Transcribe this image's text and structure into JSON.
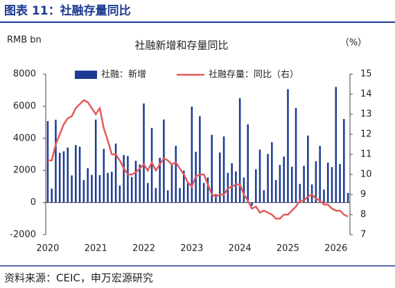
{
  "chart_data": {
    "type": "bar_line",
    "title": "图表 11：社融存量同比",
    "subtitle": "社融新增和存量同比",
    "y_label": "RMB bn",
    "y2_label": "（%）",
    "source": "资料来源：CEIC，申万宏源研究",
    "categories": [
      "2020",
      null,
      null,
      null,
      null,
      null,
      null,
      null,
      null,
      null,
      null,
      null,
      "2021",
      null,
      null,
      null,
      null,
      null,
      null,
      null,
      null,
      null,
      null,
      null,
      "2022",
      null,
      null,
      null,
      null,
      null,
      null,
      null,
      null,
      null,
      null,
      null,
      "2023",
      null,
      null,
      null,
      null,
      null,
      null,
      null,
      null,
      null,
      null,
      null,
      "2024",
      null,
      null,
      null,
      null,
      null,
      null,
      null,
      null,
      null,
      null,
      null,
      "2025",
      null,
      null,
      null,
      null,
      null,
      null,
      null,
      null,
      null,
      null,
      null,
      "2026",
      null,
      null,
      null
    ],
    "ylim": [
      -2000,
      8000
    ],
    "yticks": [
      -2000,
      0,
      2000,
      4000,
      6000,
      8000
    ],
    "y2lim": [
      7,
      15
    ],
    "y2ticks": [
      7,
      8,
      9,
      10,
      11,
      12,
      13,
      14,
      15
    ],
    "series": [
      {
        "name": "社融：新增",
        "color": "#1c3c94",
        "kind": "bar",
        "values": [
          5070,
          870,
          5160,
          3100,
          3190,
          3430,
          1690,
          3580,
          3480,
          1400,
          2140,
          1720,
          5170,
          1710,
          3340,
          1850,
          1920,
          3670,
          1060,
          2960,
          2900,
          1590,
          2600,
          2370,
          6170,
          1220,
          4650,
          910,
          2790,
          5170,
          760,
          2430,
          3530,
          910,
          1990,
          1310,
          5980,
          3160,
          5380,
          1220,
          1560,
          4220,
          530,
          3120,
          4120,
          1850,
          2450,
          1940,
          6500,
          1560,
          4870,
          -200,
          2070,
          3300,
          770,
          3030,
          3760,
          1400,
          2340,
          2860,
          7060,
          2230,
          5890,
          1160,
          2290,
          4170,
          1130,
          2570,
          3530,
          810,
          2490,
          2210,
          7200,
          2400,
          5200,
          600
        ]
      },
      {
        "name": "社融存量：同比（右）",
        "color": "#e35a5a",
        "kind": "line",
        "axis": "y2",
        "values": [
          10.7,
          10.7,
          11.5,
          12.0,
          12.5,
          12.8,
          12.9,
          13.3,
          13.5,
          13.7,
          13.6,
          13.3,
          13.0,
          13.3,
          12.3,
          11.7,
          11.0,
          11.0,
          10.7,
          10.3,
          10.0,
          10.0,
          10.1,
          10.3,
          10.5,
          10.2,
          10.6,
          10.2,
          10.5,
          10.8,
          10.7,
          10.5,
          10.6,
          10.3,
          10.0,
          9.6,
          9.4,
          9.9,
          10.0,
          10.0,
          9.5,
          9.0,
          8.9,
          9.0,
          9.0,
          9.3,
          9.4,
          9.5,
          9.5,
          9.0,
          8.7,
          8.3,
          8.4,
          8.1,
          8.2,
          8.1,
          8.0,
          7.8,
          7.8,
          8.0,
          8.0,
          8.2,
          8.4,
          8.7,
          8.7,
          8.9,
          9.0,
          8.8,
          8.7,
          8.5,
          8.5,
          8.3,
          8.2,
          8.2,
          8.0,
          7.9
        ]
      }
    ]
  }
}
